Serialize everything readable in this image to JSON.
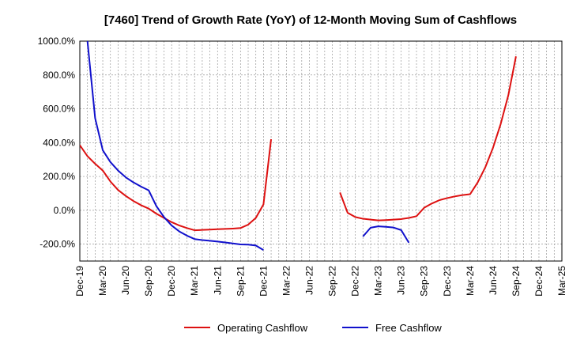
{
  "chart_data": {
    "type": "line",
    "title": "[7460]  Trend of Growth Rate (YoY) of 12-Month Moving Sum of Cashflows",
    "xlabel": "",
    "ylabel": "",
    "ylim": [
      -300,
      1000
    ],
    "y_ticks": [
      -200,
      0,
      200,
      400,
      600,
      800,
      1000
    ],
    "y_tick_labels": [
      "-200.0%",
      "0.0%",
      "200.0%",
      "400.0%",
      "600.0%",
      "800.0%",
      "1000.0%"
    ],
    "x_tick_labels": [
      "Dec-19",
      "Mar-20",
      "Jun-20",
      "Sep-20",
      "Dec-20",
      "Mar-21",
      "Jun-21",
      "Sep-21",
      "Dec-21",
      "Mar-22",
      "Jun-22",
      "Sep-22",
      "Dec-22",
      "Mar-23",
      "Jun-23",
      "Sep-23",
      "Dec-23",
      "Mar-24",
      "Jun-24",
      "Sep-24",
      "Dec-24",
      "Mar-25"
    ],
    "x_range": [
      "2019-12",
      "2025-03"
    ],
    "grid": true,
    "legend_position": "bottom",
    "series": [
      {
        "name": "Operating Cashflow",
        "color": "#dd1111",
        "points": [
          [
            "2019-12",
            385
          ],
          [
            "2020-01",
            320
          ],
          [
            "2020-02",
            275
          ],
          [
            "2020-03",
            235
          ],
          [
            "2020-04",
            170
          ],
          [
            "2020-05",
            120
          ],
          [
            "2020-06",
            85
          ],
          [
            "2020-07",
            55
          ],
          [
            "2020-08",
            30
          ],
          [
            "2020-09",
            10
          ],
          [
            "2020-10",
            -20
          ],
          [
            "2020-11",
            -45
          ],
          [
            "2020-12",
            -70
          ],
          [
            "2021-01",
            -90
          ],
          [
            "2021-02",
            -105
          ],
          [
            "2021-03",
            -118
          ],
          [
            "2021-04",
            -116
          ],
          [
            "2021-05",
            -114
          ],
          [
            "2021-06",
            -112
          ],
          [
            "2021-07",
            -110
          ],
          [
            "2021-08",
            -108
          ],
          [
            "2021-09",
            -105
          ],
          [
            "2021-10",
            -85
          ],
          [
            "2021-11",
            -45
          ],
          [
            "2021-12",
            35
          ],
          [
            "2022-01",
            420
          ],
          [
            "2022-02",
            null
          ],
          [
            "2022-03",
            null
          ],
          [
            "2022-04",
            null
          ],
          [
            "2022-05",
            null
          ],
          [
            "2022-06",
            null
          ],
          [
            "2022-07",
            null
          ],
          [
            "2022-08",
            null
          ],
          [
            "2022-09",
            null
          ],
          [
            "2022-10",
            105
          ],
          [
            "2022-11",
            -15
          ],
          [
            "2022-12",
            -40
          ],
          [
            "2023-01",
            -50
          ],
          [
            "2023-02",
            -55
          ],
          [
            "2023-03",
            -60
          ],
          [
            "2023-04",
            -58
          ],
          [
            "2023-05",
            -55
          ],
          [
            "2023-06",
            -52
          ],
          [
            "2023-07",
            -45
          ],
          [
            "2023-08",
            -35
          ],
          [
            "2023-09",
            15
          ],
          [
            "2023-10",
            40
          ],
          [
            "2023-11",
            60
          ],
          [
            "2023-12",
            72
          ],
          [
            "2024-01",
            82
          ],
          [
            "2024-02",
            90
          ],
          [
            "2024-03",
            95
          ],
          [
            "2024-04",
            165
          ],
          [
            "2024-05",
            255
          ],
          [
            "2024-06",
            370
          ],
          [
            "2024-07",
            510
          ],
          [
            "2024-08",
            680
          ],
          [
            "2024-09",
            910
          ]
        ]
      },
      {
        "name": "Free Cashflow",
        "color": "#1111cc",
        "points": [
          [
            "2019-12",
            null
          ],
          [
            "2020-01",
            1000
          ],
          [
            "2020-02",
            545
          ],
          [
            "2020-03",
            355
          ],
          [
            "2020-04",
            285
          ],
          [
            "2020-05",
            235
          ],
          [
            "2020-06",
            195
          ],
          [
            "2020-07",
            165
          ],
          [
            "2020-08",
            140
          ],
          [
            "2020-09",
            118
          ],
          [
            "2020-10",
            25
          ],
          [
            "2020-11",
            -40
          ],
          [
            "2020-12",
            -90
          ],
          [
            "2021-01",
            -125
          ],
          [
            "2021-02",
            -150
          ],
          [
            "2021-03",
            -170
          ],
          [
            "2021-04",
            -176
          ],
          [
            "2021-05",
            -180
          ],
          [
            "2021-06",
            -185
          ],
          [
            "2021-07",
            -190
          ],
          [
            "2021-08",
            -196
          ],
          [
            "2021-09",
            -202
          ],
          [
            "2021-10",
            -203
          ],
          [
            "2021-11",
            -208
          ],
          [
            "2021-12",
            -235
          ],
          [
            "2022-01",
            null
          ],
          [
            "2022-02",
            null
          ],
          [
            "2022-03",
            null
          ],
          [
            "2022-04",
            null
          ],
          [
            "2022-05",
            null
          ],
          [
            "2022-06",
            null
          ],
          [
            "2022-07",
            null
          ],
          [
            "2022-08",
            null
          ],
          [
            "2022-09",
            null
          ],
          [
            "2022-10",
            null
          ],
          [
            "2022-11",
            null
          ],
          [
            "2022-12",
            null
          ],
          [
            "2023-01",
            -155
          ],
          [
            "2023-02",
            -103
          ],
          [
            "2023-03",
            -95
          ],
          [
            "2023-04",
            -98
          ],
          [
            "2023-05",
            -102
          ],
          [
            "2023-06",
            -117
          ],
          [
            "2023-07",
            -192
          ]
        ]
      }
    ]
  }
}
